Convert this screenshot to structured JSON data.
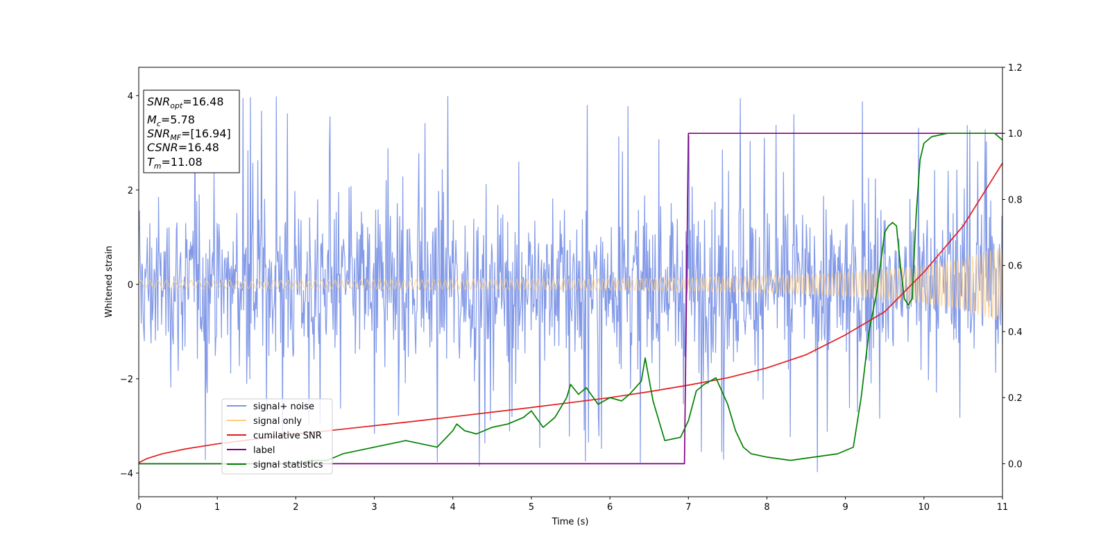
{
  "chart_data": {
    "type": "line",
    "xlabel": "Time (s)",
    "ylabel": "Whitened strain",
    "xlim": [
      0,
      11
    ],
    "ylim": [
      -4.5,
      4.6
    ],
    "y2lim": [
      -0.1,
      1.2
    ],
    "x_ticks": [
      "0",
      "1",
      "2",
      "3",
      "4",
      "5",
      "6",
      "7",
      "8",
      "9",
      "10",
      "11"
    ],
    "y_ticks": [
      "4",
      "2",
      "0",
      "−2",
      "−4"
    ],
    "y_tick_values": [
      4,
      2,
      0,
      -2,
      -4
    ],
    "y2_ticks": [
      "1.2",
      "1.0",
      "0.8",
      "0.6",
      "0.4",
      "0.2",
      "0.0"
    ],
    "y2_tick_values": [
      1.2,
      1.0,
      0.8,
      0.6,
      0.4,
      0.2,
      0.0
    ],
    "grid": false,
    "legend_position": "lower-left",
    "info_box": {
      "snr_opt": {
        "base": "SNR",
        "sub": "opt",
        "value": "=16.48"
      },
      "mc": {
        "base": "M",
        "sub": "c",
        "value": "=5.78"
      },
      "snr_mf": {
        "base": "SNR",
        "sub": "MF",
        "value": "=[16.94]"
      },
      "csnr": {
        "base": "CSNR",
        "sub": "",
        "value": "=16.48"
      },
      "tm": {
        "base": "T",
        "sub": "m",
        "value": "=11.08"
      }
    },
    "series": [
      {
        "name": "signal+ noise",
        "color": "#7b93e6",
        "axis": "left",
        "description": "noisy whitened strain, band roughly ±1.5 with spikes up to ±4",
        "noise_band": 1.5
      },
      {
        "name": "signal only",
        "color": "#ffcc80",
        "axis": "left",
        "description": "chirp whose amplitude grows from ~0.08 to ~0.8 at t=11",
        "amplitude": [
          [
            0,
            0.08
          ],
          [
            2,
            0.09
          ],
          [
            4,
            0.1
          ],
          [
            6,
            0.12
          ],
          [
            7,
            0.14
          ],
          [
            8,
            0.18
          ],
          [
            9,
            0.25
          ],
          [
            10,
            0.4
          ],
          [
            10.5,
            0.55
          ],
          [
            11,
            0.8
          ]
        ]
      },
      {
        "name": "cumilative SNR",
        "color": "#e31a1c",
        "axis": "right",
        "x": [
          0,
          0.1,
          0.3,
          0.6,
          1,
          1.5,
          2,
          2.5,
          3,
          3.5,
          4,
          4.5,
          5,
          5.5,
          6,
          6.5,
          7,
          7.5,
          8,
          8.5,
          9,
          9.5,
          10,
          10.5,
          11
        ],
        "y": [
          0.003,
          0.015,
          0.03,
          0.045,
          0.06,
          0.075,
          0.09,
          0.102,
          0.115,
          0.128,
          0.142,
          0.156,
          0.17,
          0.185,
          0.2,
          0.218,
          0.238,
          0.26,
          0.29,
          0.33,
          0.39,
          0.46,
          0.58,
          0.72,
          0.91
        ]
      },
      {
        "name": "label",
        "color": "#800080",
        "axis": "right",
        "x": [
          0,
          6.95,
          7.0,
          11
        ],
        "y": [
          0,
          0,
          1.0,
          1.0
        ]
      },
      {
        "name": "signal statistics",
        "color": "#008000",
        "axis": "right",
        "x": [
          0,
          2,
          2.2,
          2.4,
          2.6,
          2.8,
          3.0,
          3.2,
          3.4,
          3.6,
          3.8,
          4.0,
          4.05,
          4.15,
          4.3,
          4.5,
          4.7,
          4.9,
          5.0,
          5.15,
          5.3,
          5.45,
          5.5,
          5.6,
          5.7,
          5.85,
          6.0,
          6.15,
          6.25,
          6.4,
          6.45,
          6.55,
          6.7,
          6.9,
          7.0,
          7.1,
          7.2,
          7.35,
          7.5,
          7.6,
          7.7,
          7.8,
          8.0,
          8.3,
          8.6,
          8.9,
          9.1,
          9.2,
          9.3,
          9.4,
          9.5,
          9.55,
          9.6,
          9.65,
          9.7,
          9.75,
          9.8,
          9.85,
          9.9,
          9.95,
          10.0,
          10.1,
          10.3,
          10.6,
          10.9,
          11.0
        ],
        "y": [
          0.0,
          0.0,
          0.01,
          0.01,
          0.03,
          0.04,
          0.05,
          0.06,
          0.07,
          0.06,
          0.05,
          0.1,
          0.12,
          0.1,
          0.09,
          0.11,
          0.12,
          0.14,
          0.16,
          0.11,
          0.14,
          0.2,
          0.24,
          0.21,
          0.23,
          0.18,
          0.2,
          0.19,
          0.21,
          0.25,
          0.32,
          0.19,
          0.07,
          0.08,
          0.13,
          0.22,
          0.24,
          0.26,
          0.18,
          0.1,
          0.05,
          0.03,
          0.02,
          0.01,
          0.02,
          0.03,
          0.05,
          0.2,
          0.4,
          0.52,
          0.7,
          0.72,
          0.73,
          0.72,
          0.6,
          0.5,
          0.48,
          0.5,
          0.75,
          0.92,
          0.97,
          0.99,
          1.0,
          1.0,
          1.0,
          0.98
        ]
      }
    ]
  }
}
